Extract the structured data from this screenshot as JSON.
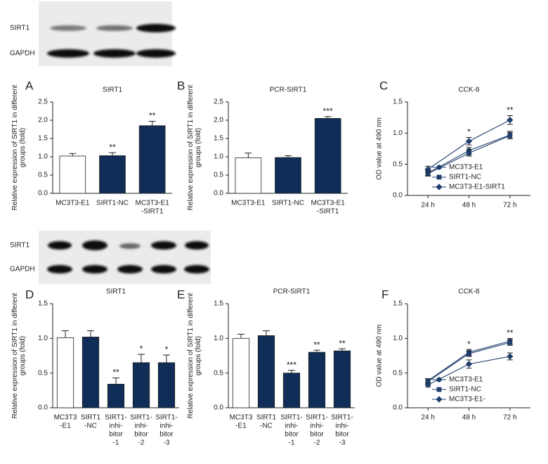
{
  "blots": [
    {
      "labels": [
        "SIRT1",
        "GAPDH"
      ]
    },
    {
      "labels": [
        "SIRT1",
        "GAPDH"
      ]
    }
  ],
  "chart_data": [
    {
      "type": "bar",
      "panel": "A",
      "title": "SIRT1",
      "ylabel": [
        "Relative expression of SIRT1 in different",
        "groups (fold)"
      ],
      "categories": [
        [
          "MC3T3-E1"
        ],
        [
          "SIRT1-NC"
        ],
        [
          "MC3T3-E1",
          "-SIRT1"
        ]
      ],
      "values": [
        1.02,
        1.03,
        1.85
      ],
      "errors": [
        0.07,
        0.08,
        0.12
      ],
      "annotations": [
        null,
        "**",
        "**"
      ],
      "colors": [
        "#ffffff",
        "#0f2d57",
        "#0f2d57"
      ],
      "ylim": [
        0,
        2.5
      ],
      "yticks": [
        {
          "value": 0,
          "label": "0.0"
        },
        0.5,
        {
          "value": 1,
          "label": "1.0"
        },
        1.5,
        {
          "value": 2,
          "label": "2.0"
        },
        2.5
      ]
    },
    {
      "type": "bar",
      "panel": "B",
      "title": "PCR-SIRT1",
      "ylabel": [
        "Relative expression of SIRT1 in different",
        "groups (fold)"
      ],
      "categories": [
        [
          "MC3T3-E1"
        ],
        [
          "SIRT1-NC"
        ],
        [
          "MC3T3-E1",
          "-SIRT1"
        ]
      ],
      "values": [
        0.97,
        0.98,
        2.05
      ],
      "errors": [
        0.13,
        0.05,
        0.05
      ],
      "annotations": [
        null,
        null,
        "***"
      ],
      "colors": [
        "#ffffff",
        "#0f2d57",
        "#0f2d57"
      ],
      "ylim": [
        0,
        2.5
      ],
      "yticks": [
        {
          "value": 0,
          "label": "0.0"
        },
        0.5,
        {
          "value": 1,
          "label": "1.0"
        },
        1.5,
        {
          "value": 2,
          "label": "2.0"
        },
        2.5
      ]
    },
    {
      "type": "line",
      "panel": "C",
      "title": "CCK-8",
      "ylabel": [
        "OD value at 490 nm"
      ],
      "categories": [
        [
          "24 h"
        ],
        [
          "48 h"
        ],
        [
          "72 h"
        ]
      ],
      "annotations": [
        null,
        "*",
        "**"
      ],
      "legend": "lower right",
      "series": [
        {
          "name": "MC3T3-E1",
          "color": "#1f3d6b",
          "marker": "circle",
          "values": [
            0.36,
            0.72,
            0.97
          ],
          "errors": [
            0.04,
            0.05,
            0.06
          ]
        },
        {
          "name": "SIRT1-NC",
          "color": "#1f3d6b",
          "marker": "square",
          "values": [
            0.35,
            0.68,
            0.96
          ],
          "errors": [
            0.04,
            0.05,
            0.05
          ]
        },
        {
          "name": "MC3T3-E1-SIRT1",
          "color": "#1f3d6b",
          "marker": "diamond",
          "values": [
            0.42,
            0.87,
            1.21
          ],
          "errors": [
            0.05,
            0.06,
            0.07
          ]
        }
      ],
      "ylim": [
        0,
        1.5
      ],
      "yticks": [
        {
          "value": 0,
          "label": "0.0"
        },
        0.5,
        {
          "value": 1,
          "label": "1.0"
        },
        1.5
      ]
    },
    {
      "type": "bar",
      "panel": "D",
      "title": "SIRT1",
      "ylabel": [
        "Relative expression of SIRT1 in different",
        "groups (fold)"
      ],
      "categories": [
        [
          "MC3T3",
          "-E1"
        ],
        [
          "SIRT1",
          "-NC"
        ],
        [
          "SIRT1-",
          "inhi-",
          "bitor",
          "-1"
        ],
        [
          "SIRT1-",
          "inhi-",
          "bitor",
          "-2"
        ],
        [
          "SIRT1-",
          "inhi-",
          "bitor",
          "-3"
        ]
      ],
      "values": [
        1.01,
        1.02,
        0.34,
        0.65,
        0.65
      ],
      "errors": [
        0.1,
        0.09,
        0.09,
        0.12,
        0.11
      ],
      "annotations": [
        null,
        null,
        "**",
        "*",
        "*"
      ],
      "colors": [
        "#ffffff",
        "#0f2d57",
        "#0f2d57",
        "#0f2d57",
        "#0f2d57"
      ],
      "ylim": [
        0,
        1.5
      ],
      "yticks": [
        {
          "value": 0,
          "label": "0.0"
        },
        0.5,
        {
          "value": 1,
          "label": "1.0"
        },
        1.5
      ]
    },
    {
      "type": "bar",
      "panel": "E",
      "title": "PCR-SIRT1",
      "ylabel": [
        "Relative expression of SIRT1 in different",
        "groups (fold)"
      ],
      "categories": [
        [
          "MC3T3",
          "-E1"
        ],
        [
          "SIRT1",
          "-NC"
        ],
        [
          "SIRT1-",
          "inhi-",
          "bitor",
          "-1"
        ],
        [
          "SIRT1-",
          "inhi-",
          "bitor",
          "-2"
        ],
        [
          "SIRT1-",
          "inhi-",
          "bitor",
          "-3"
        ]
      ],
      "values": [
        1.0,
        1.04,
        0.5,
        0.8,
        0.82
      ],
      "errors": [
        0.06,
        0.07,
        0.04,
        0.03,
        0.03
      ],
      "annotations": [
        null,
        null,
        "***",
        "**",
        "**"
      ],
      "colors": [
        "#ffffff",
        "#0f2d57",
        "#0f2d57",
        "#0f2d57",
        "#0f2d57"
      ],
      "ylim": [
        0,
        1.5
      ],
      "yticks": [
        {
          "value": 0,
          "label": "0.0"
        },
        0.5,
        {
          "value": 1,
          "label": "1.0"
        },
        1.5
      ]
    },
    {
      "type": "line",
      "panel": "F",
      "title": "CCK-8",
      "ylabel": [
        "OD value at 490 nm"
      ],
      "categories": [
        [
          "24 h"
        ],
        [
          "48 h"
        ],
        [
          "72 h"
        ]
      ],
      "annotations": [
        null,
        "*",
        "**"
      ],
      "legend": "lower right",
      "series": [
        {
          "name": "MC3T3-E1",
          "color": "#1f3d6b",
          "marker": "circle",
          "values": [
            0.39,
            0.8,
            0.96
          ],
          "errors": [
            0.03,
            0.04,
            0.04
          ]
        },
        {
          "name": "SIRT1-NC",
          "color": "#1f3d6b",
          "marker": "square",
          "values": [
            0.38,
            0.78,
            0.94
          ],
          "errors": [
            0.03,
            0.04,
            0.04
          ]
        },
        {
          "name": "MC3T3-E1-",
          "color": "#1f3d6b",
          "marker": "diamond",
          "values": [
            0.33,
            0.63,
            0.74
          ],
          "errors": [
            0.03,
            0.06,
            0.05
          ]
        }
      ],
      "ylim": [
        0,
        1.5
      ],
      "yticks": [
        {
          "value": 0,
          "label": "0.0"
        },
        0.5,
        {
          "value": 1,
          "label": "1.0"
        },
        1.5
      ]
    }
  ]
}
